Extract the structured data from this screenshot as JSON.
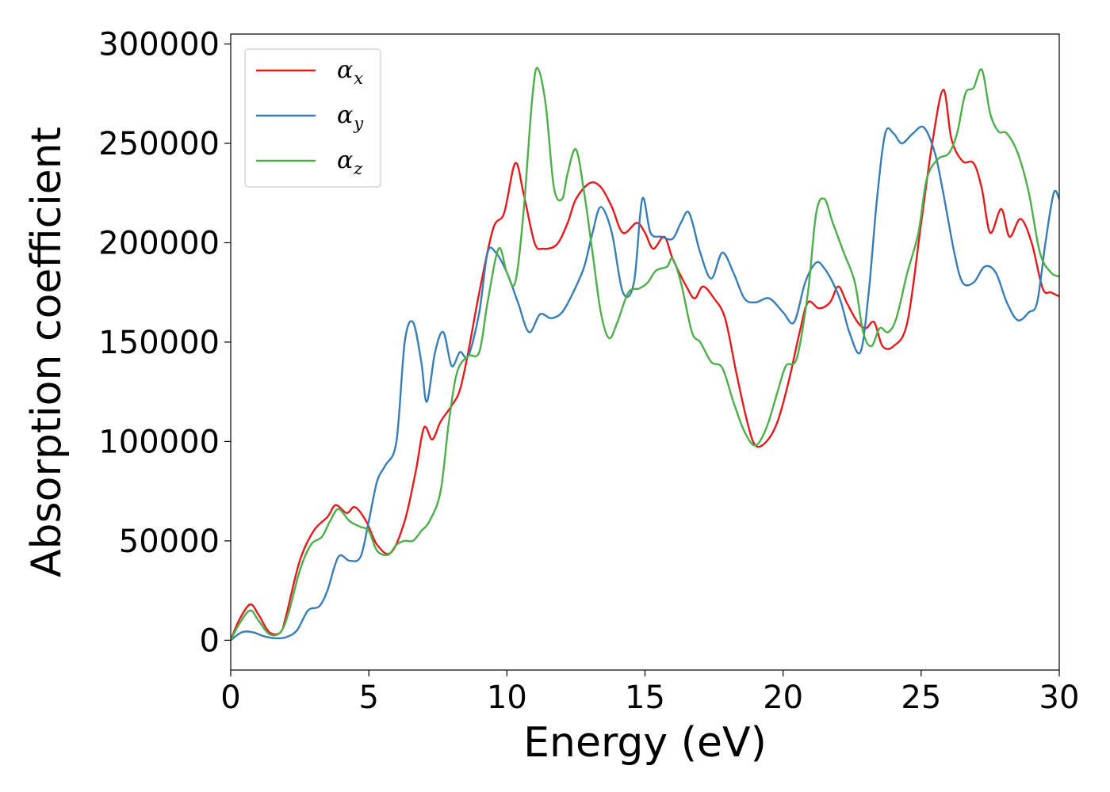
{
  "chart_data": {
    "type": "line",
    "title": "",
    "xlabel": "Energy (eV)",
    "ylabel": "Absorption coefficient",
    "xlim": [
      0,
      30
    ],
    "ylim": [
      -15000,
      305000
    ],
    "xticks": [
      0,
      5,
      10,
      15,
      20,
      25,
      30
    ],
    "xtick_labels": [
      "0",
      "5",
      "10",
      "15",
      "20",
      "25",
      "30"
    ],
    "yticks": [
      0,
      50000,
      100000,
      150000,
      200000,
      250000,
      300000
    ],
    "ytick_labels": [
      "0",
      "50000",
      "100000",
      "150000",
      "200000",
      "250000",
      "300000"
    ],
    "grid": false,
    "legend_position": "top-left",
    "series": [
      {
        "name": "α_x",
        "legend_symbol": "α",
        "legend_sub": "x",
        "color": "#e41a1c",
        "x": [
          0,
          0.3,
          0.7,
          1.0,
          1.4,
          1.8,
          2.0,
          2.5,
          3.0,
          3.5,
          3.8,
          4.2,
          4.5,
          4.9,
          5.3,
          5.8,
          6.3,
          6.7,
          7.0,
          7.3,
          7.6,
          8.0,
          8.3,
          8.6,
          9.0,
          9.5,
          9.9,
          10.3,
          10.6,
          11.0,
          11.3,
          11.8,
          12.2,
          12.5,
          13.0,
          13.4,
          13.8,
          14.2,
          14.7,
          15.0,
          15.3,
          15.7,
          16.0,
          16.5,
          16.8,
          17.1,
          17.5,
          17.9,
          18.3,
          18.7,
          19.0,
          19.4,
          19.8,
          20.2,
          20.6,
          20.9,
          21.3,
          21.7,
          22.0,
          22.3,
          22.7,
          23.0,
          23.3,
          23.6,
          24.0,
          24.5,
          25.0,
          25.4,
          25.8,
          26.1,
          26.5,
          26.9,
          27.2,
          27.5,
          27.9,
          28.2,
          28.6,
          29.0,
          29.4,
          29.7,
          30.0
        ],
        "y": [
          0,
          10000,
          18000,
          13000,
          4000,
          4000,
          12000,
          40000,
          55000,
          62000,
          68000,
          64000,
          67000,
          60000,
          48000,
          44000,
          60000,
          85000,
          107000,
          101000,
          110000,
          118000,
          126000,
          145000,
          175000,
          207000,
          215000,
          240000,
          225000,
          200000,
          197000,
          199000,
          210000,
          222000,
          230000,
          228000,
          218000,
          205000,
          210000,
          205000,
          197000,
          203000,
          192000,
          178000,
          172000,
          178000,
          172000,
          162000,
          135000,
          110000,
          98000,
          100000,
          110000,
          130000,
          155000,
          170000,
          167000,
          170000,
          178000,
          170000,
          160000,
          157000,
          160000,
          148000,
          148000,
          160000,
          210000,
          250000,
          277000,
          252000,
          241000,
          240000,
          227000,
          205000,
          217000,
          203000,
          212000,
          200000,
          177000,
          175000,
          173000
        ]
      },
      {
        "name": "α_y",
        "legend_symbol": "α",
        "legend_sub": "y",
        "color": "#377eb8",
        "x": [
          0,
          0.4,
          0.8,
          1.2,
          1.6,
          2.0,
          2.4,
          2.8,
          3.2,
          3.5,
          3.9,
          4.3,
          4.7,
          5.0,
          5.3,
          5.6,
          6.0,
          6.3,
          6.6,
          6.9,
          7.1,
          7.4,
          7.7,
          8.0,
          8.3,
          8.6,
          9.0,
          9.3,
          9.6,
          10.0,
          10.4,
          10.8,
          11.2,
          11.6,
          12.0,
          12.4,
          12.8,
          13.1,
          13.4,
          13.8,
          14.2,
          14.6,
          14.9,
          15.2,
          15.6,
          16.0,
          16.3,
          16.6,
          17.0,
          17.4,
          17.8,
          18.2,
          18.6,
          19.0,
          19.5,
          20.0,
          20.4,
          20.8,
          21.2,
          21.5,
          21.8,
          22.1,
          22.4,
          22.8,
          23.1,
          23.4,
          23.7,
          24.0,
          24.3,
          24.7,
          25.1,
          25.5,
          25.8,
          26.2,
          26.5,
          26.9,
          27.3,
          27.7,
          28.1,
          28.5,
          28.9,
          29.2,
          29.5,
          29.8,
          30.0
        ],
        "y": [
          0,
          4000,
          4000,
          2000,
          1000,
          1500,
          5000,
          15000,
          17000,
          25000,
          42000,
          40000,
          42000,
          60000,
          80000,
          88000,
          100000,
          150000,
          160000,
          140000,
          120000,
          145000,
          155000,
          138000,
          145000,
          143000,
          165000,
          195000,
          195000,
          185000,
          170000,
          155000,
          164000,
          162000,
          165000,
          175000,
          188000,
          205000,
          218000,
          205000,
          175000,
          180000,
          222000,
          205000,
          203000,
          202000,
          210000,
          215000,
          195000,
          182000,
          195000,
          185000,
          172000,
          170000,
          172000,
          165000,
          160000,
          180000,
          190000,
          187000,
          180000,
          170000,
          155000,
          145000,
          175000,
          222000,
          255000,
          255000,
          250000,
          255000,
          258000,
          245000,
          225000,
          195000,
          180000,
          180000,
          188000,
          185000,
          170000,
          161000,
          165000,
          170000,
          200000,
          225000,
          222000
        ]
      },
      {
        "name": "α_z",
        "legend_symbol": "α",
        "legend_sub": "z",
        "color": "#4daf4a",
        "x": [
          0,
          0.3,
          0.7,
          1.0,
          1.4,
          1.8,
          2.1,
          2.5,
          2.9,
          3.3,
          3.6,
          3.9,
          4.3,
          4.7,
          5.0,
          5.3,
          5.7,
          6.0,
          6.3,
          6.6,
          6.9,
          7.2,
          7.6,
          7.9,
          8.2,
          8.6,
          9.0,
          9.3,
          9.7,
          10.0,
          10.3,
          10.6,
          10.9,
          11.1,
          11.4,
          11.7,
          12.0,
          12.2,
          12.5,
          12.8,
          13.1,
          13.4,
          13.7,
          14.0,
          14.4,
          14.8,
          15.1,
          15.4,
          15.8,
          16.0,
          16.3,
          16.7,
          17.0,
          17.4,
          17.8,
          18.2,
          18.6,
          19.0,
          19.4,
          19.8,
          20.1,
          20.5,
          20.9,
          21.2,
          21.5,
          21.8,
          22.2,
          22.6,
          22.9,
          23.2,
          23.5,
          23.8,
          24.1,
          24.5,
          24.9,
          25.2,
          25.6,
          26.0,
          26.3,
          26.6,
          26.9,
          27.2,
          27.5,
          27.8,
          28.1,
          28.5,
          28.9,
          29.3,
          29.7,
          30.0
        ],
        "y": [
          0,
          8000,
          15000,
          10000,
          3000,
          4000,
          14000,
          35000,
          48000,
          52000,
          60000,
          66000,
          60000,
          57000,
          55000,
          45000,
          43000,
          48000,
          50000,
          50000,
          55000,
          60000,
          75000,
          110000,
          135000,
          143000,
          145000,
          170000,
          197000,
          185000,
          180000,
          215000,
          270000,
          288000,
          270000,
          228000,
          222000,
          235000,
          247000,
          225000,
          195000,
          165000,
          152000,
          160000,
          175000,
          177000,
          180000,
          186000,
          188000,
          192000,
          180000,
          155000,
          150000,
          140000,
          137000,
          120000,
          105000,
          98000,
          107000,
          125000,
          138000,
          142000,
          175000,
          215000,
          222000,
          210000,
          195000,
          180000,
          155000,
          148000,
          157000,
          155000,
          162000,
          185000,
          205000,
          232000,
          242000,
          245000,
          255000,
          275000,
          278000,
          287000,
          265000,
          256000,
          255000,
          245000,
          225000,
          195000,
          185000,
          183000
        ]
      }
    ]
  }
}
